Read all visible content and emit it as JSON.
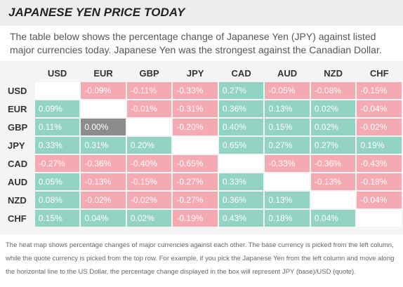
{
  "header": {
    "title": "JAPANESE YEN PRICE TODAY"
  },
  "description": "The table below shows the percentage change of Japanese Yen (JPY) against listed major currencies today. Japanese Yen was the strongest against the Canadian Dollar.",
  "columns": [
    "USD",
    "EUR",
    "GBP",
    "JPY",
    "CAD",
    "AUD",
    "NZD",
    "CHF"
  ],
  "rows": [
    {
      "label": "USD",
      "cells": [
        {
          "v": "",
          "s": "empty"
        },
        {
          "v": "-0.09%",
          "s": "neg"
        },
        {
          "v": "-0.11%",
          "s": "neg"
        },
        {
          "v": "-0.33%",
          "s": "neg"
        },
        {
          "v": "0.27%",
          "s": "pos"
        },
        {
          "v": "-0.05%",
          "s": "neg"
        },
        {
          "v": "-0.08%",
          "s": "neg"
        },
        {
          "v": "-0.15%",
          "s": "neg"
        }
      ]
    },
    {
      "label": "EUR",
      "cells": [
        {
          "v": "0.09%",
          "s": "pos"
        },
        {
          "v": "",
          "s": "empty"
        },
        {
          "v": "-0.01%",
          "s": "neg"
        },
        {
          "v": "-0.31%",
          "s": "neg"
        },
        {
          "v": "0.36%",
          "s": "pos"
        },
        {
          "v": "0.13%",
          "s": "pos"
        },
        {
          "v": "0.02%",
          "s": "pos"
        },
        {
          "v": "-0.04%",
          "s": "neg"
        }
      ]
    },
    {
      "label": "GBP",
      "cells": [
        {
          "v": "0.11%",
          "s": "pos"
        },
        {
          "v": "0.00%",
          "s": "zero"
        },
        {
          "v": "",
          "s": "empty"
        },
        {
          "v": "-0.20%",
          "s": "neg"
        },
        {
          "v": "0.40%",
          "s": "pos"
        },
        {
          "v": "0.15%",
          "s": "pos"
        },
        {
          "v": "0.02%",
          "s": "pos"
        },
        {
          "v": "-0.02%",
          "s": "neg"
        }
      ]
    },
    {
      "label": "JPY",
      "cells": [
        {
          "v": "0.33%",
          "s": "pos"
        },
        {
          "v": "0.31%",
          "s": "pos"
        },
        {
          "v": "0.20%",
          "s": "pos"
        },
        {
          "v": "",
          "s": "empty"
        },
        {
          "v": "0.65%",
          "s": "pos"
        },
        {
          "v": "0.27%",
          "s": "pos"
        },
        {
          "v": "0.27%",
          "s": "pos"
        },
        {
          "v": "0.19%",
          "s": "pos"
        }
      ]
    },
    {
      "label": "CAD",
      "cells": [
        {
          "v": "-0.27%",
          "s": "neg"
        },
        {
          "v": "-0.36%",
          "s": "neg"
        },
        {
          "v": "-0.40%",
          "s": "neg"
        },
        {
          "v": "-0.65%",
          "s": "neg"
        },
        {
          "v": "",
          "s": "empty"
        },
        {
          "v": "-0.33%",
          "s": "neg"
        },
        {
          "v": "-0.36%",
          "s": "neg"
        },
        {
          "v": "-0.43%",
          "s": "neg"
        }
      ]
    },
    {
      "label": "AUD",
      "cells": [
        {
          "v": "0.05%",
          "s": "pos"
        },
        {
          "v": "-0.13%",
          "s": "neg"
        },
        {
          "v": "-0.15%",
          "s": "neg"
        },
        {
          "v": "-0.27%",
          "s": "neg"
        },
        {
          "v": "0.33%",
          "s": "pos"
        },
        {
          "v": "",
          "s": "empty"
        },
        {
          "v": "-0.13%",
          "s": "neg"
        },
        {
          "v": "-0.18%",
          "s": "neg"
        }
      ]
    },
    {
      "label": "NZD",
      "cells": [
        {
          "v": "0.08%",
          "s": "pos"
        },
        {
          "v": "-0.02%",
          "s": "neg"
        },
        {
          "v": "-0.02%",
          "s": "neg"
        },
        {
          "v": "-0.27%",
          "s": "neg"
        },
        {
          "v": "0.36%",
          "s": "pos"
        },
        {
          "v": "0.13%",
          "s": "pos"
        },
        {
          "v": "",
          "s": "empty"
        },
        {
          "v": "-0.04%",
          "s": "neg"
        }
      ]
    },
    {
      "label": "CHF",
      "cells": [
        {
          "v": "0.15%",
          "s": "pos"
        },
        {
          "v": "0.04%",
          "s": "pos"
        },
        {
          "v": "0.02%",
          "s": "pos"
        },
        {
          "v": "-0.19%",
          "s": "neg"
        },
        {
          "v": "0.43%",
          "s": "pos"
        },
        {
          "v": "0.18%",
          "s": "pos"
        },
        {
          "v": "0.04%",
          "s": "pos"
        },
        {
          "v": "",
          "s": "empty"
        }
      ]
    }
  ],
  "footnote": "The heat map shows percentage changes of major currencies against each other. The base currency is picked from the left column, while the quote currency is picked from the top row. For example, if you pick the Japanese Yen from the left column and move along the horizontal line to the US Dollar, the percentage change displayed in the box will represent JPY (base)/USD (quote).",
  "colors": {
    "positive": "#92d3c4",
    "negative": "#f5a9b2",
    "zero": "#8c8c8c",
    "empty": "#ffffff"
  }
}
